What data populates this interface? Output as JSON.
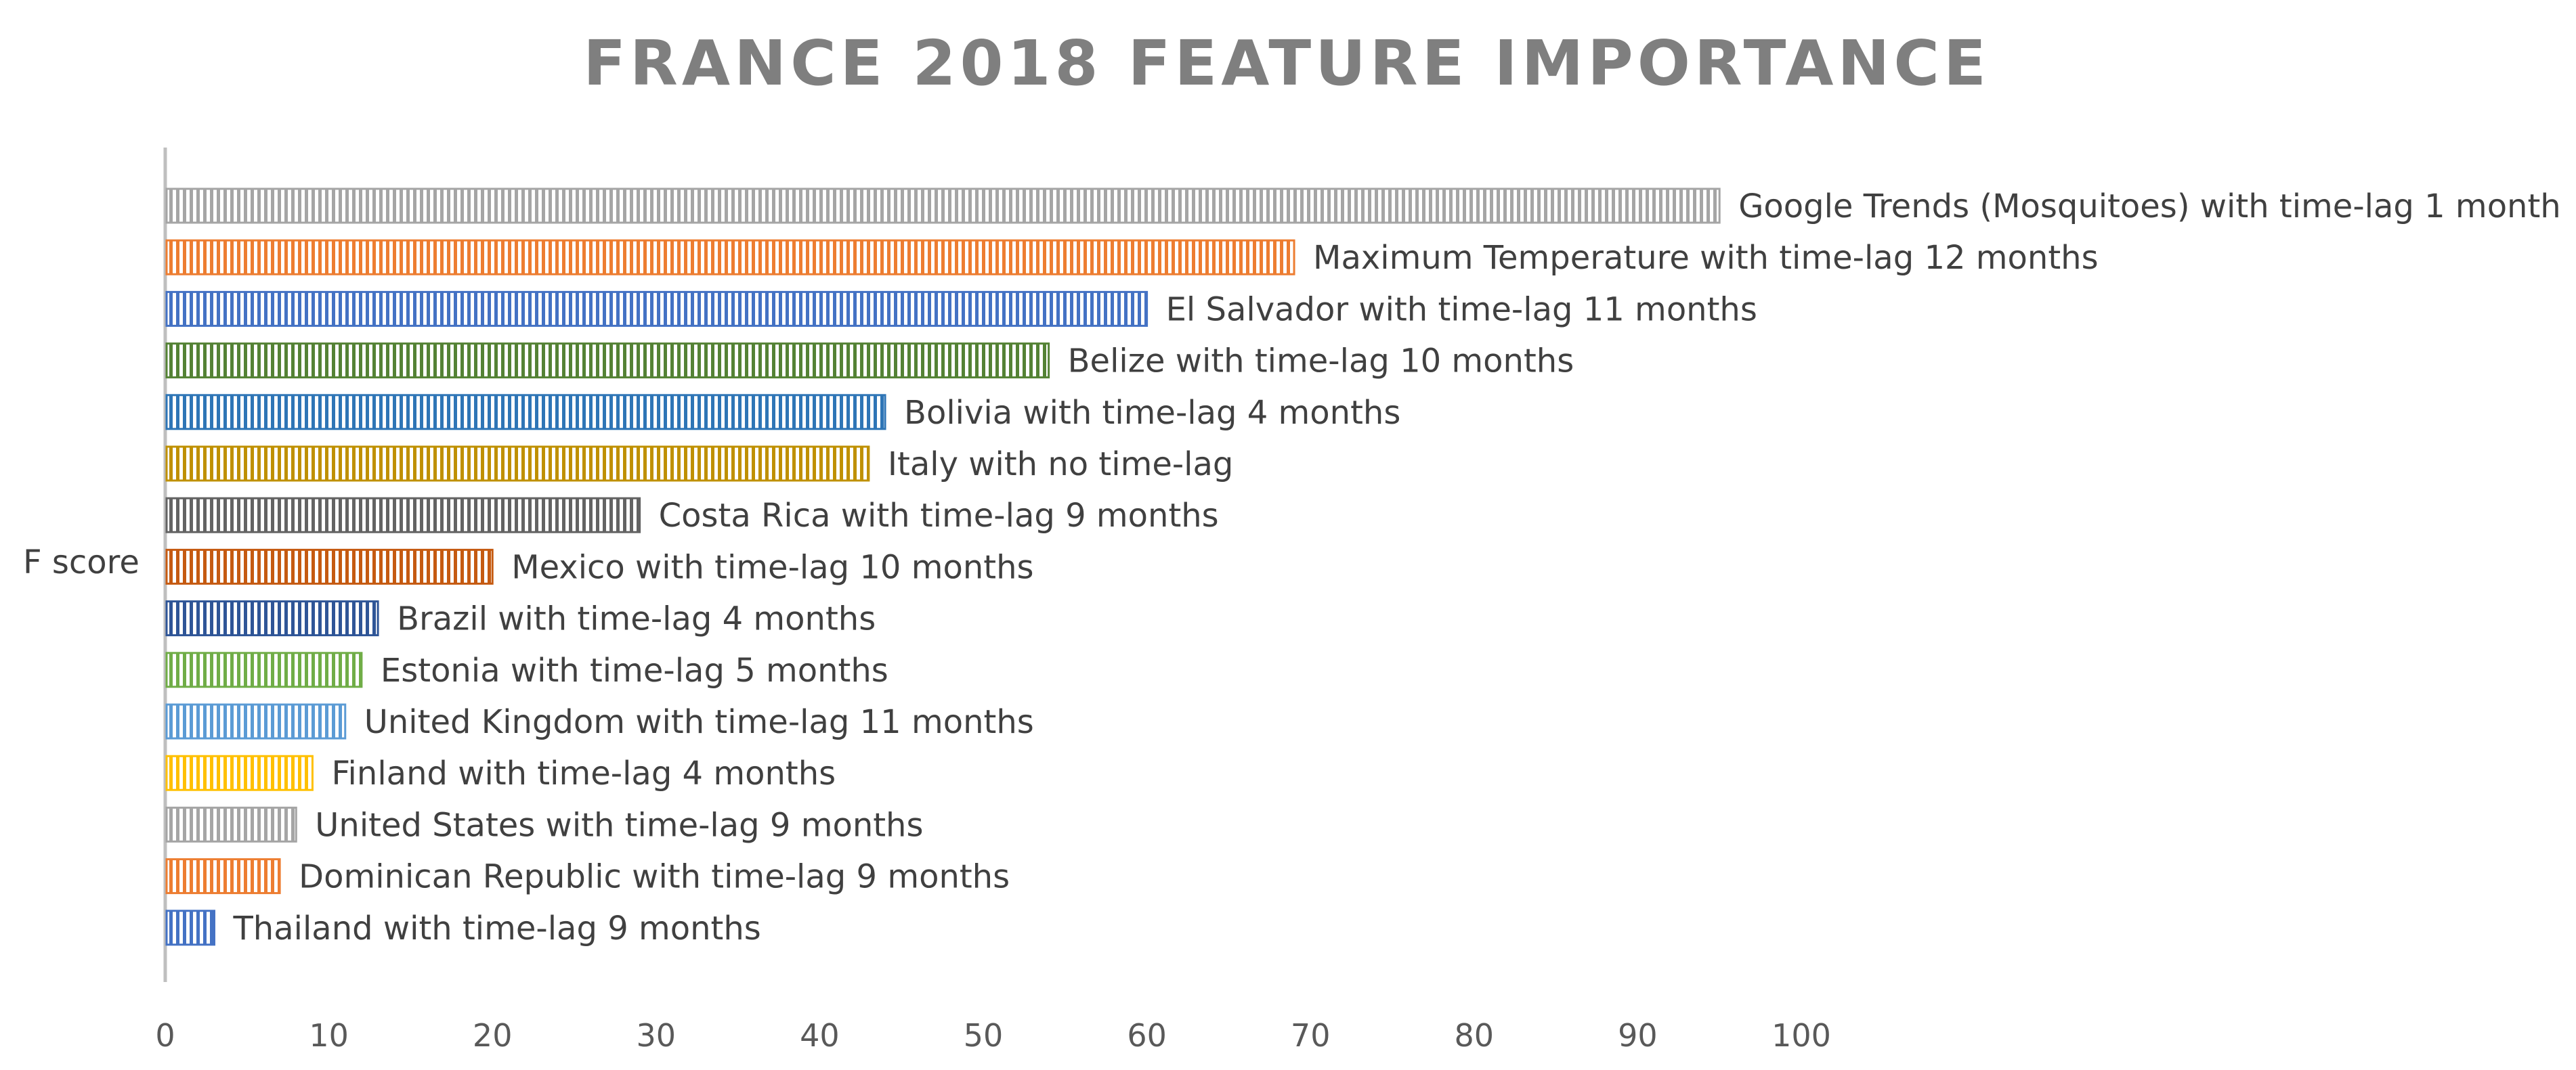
{
  "chart_data": {
    "type": "bar",
    "orientation": "horizontal",
    "title": "FRANCE 2018 FEATURE IMPORTANCE",
    "ylabel": "F score",
    "xlabel": "",
    "xlim": [
      0,
      100
    ],
    "x_ticks": [
      "0",
      "10",
      "20",
      "30",
      "40",
      "50",
      "60",
      "70",
      "80",
      "90",
      "100"
    ],
    "grid": false,
    "legend": "none",
    "categories": [
      "Google Trends (Mosquitoes) with time-lag 1 month",
      "Maximum Temperature with time-lag 12 months",
      "El Salvador with time-lag 11 months",
      "Belize with time-lag 10 months",
      "Bolivia with time-lag 4 months",
      "Italy with no time-lag",
      "Costa Rica with time-lag 9 months",
      "Mexico with time-lag 10 months",
      "Brazil with time-lag 4 months",
      "Estonia with time-lag 5 months",
      "United Kingdom with time-lag 11 months",
      "Finland with time-lag 4 months",
      "United States with time-lag 9 months",
      "Dominican Republic with time-lag 9 months",
      "Thailand with time-lag 9 months"
    ],
    "values": [
      95,
      69,
      60,
      54,
      44,
      43,
      29,
      20,
      13,
      12,
      11,
      9,
      8,
      7,
      3
    ],
    "colors": [
      "#a5a5a5",
      "#ed7d31",
      "#4472c4",
      "#548235",
      "#2e75b6",
      "#bf9000",
      "#636363",
      "#c55a11",
      "#2f5597",
      "#70ad47",
      "#5b9bd5",
      "#ffc000",
      "#a5a5a5",
      "#ed7d31",
      "#4472c4"
    ]
  }
}
